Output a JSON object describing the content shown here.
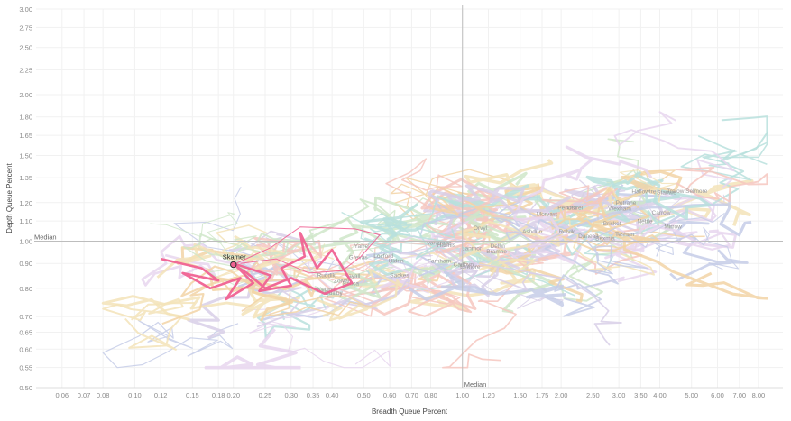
{
  "chart_data": {
    "type": "line",
    "xlabel": "Breadth Queue Percent",
    "ylabel": "Depth Queue Percent",
    "x_scale": "log",
    "y_scale": "log",
    "xlim": [
      0.05,
      9.5
    ],
    "ylim": [
      0.5,
      3.0
    ],
    "x_ticks": [
      0.06,
      0.07,
      0.08,
      0.1,
      0.12,
      0.15,
      0.18,
      0.2,
      0.25,
      0.3,
      0.35,
      0.4,
      0.5,
      0.6,
      0.7,
      0.8,
      1.0,
      1.2,
      1.5,
      1.75,
      2.0,
      2.5,
      3.0,
      3.5,
      4.0,
      5.0,
      6.0,
      7.0,
      8.0
    ],
    "x_tick_labels": [
      "0.06",
      "0.07",
      "0.08",
      "0.10",
      "0.12",
      "0.15",
      "0.18",
      "0.20",
      "0.25",
      "0.30",
      "0.35",
      "0.40",
      "0.50",
      "0.60",
      "0.70",
      "0.80",
      "1.00",
      "1.20",
      "1.50",
      "1.75",
      "2.00",
      "2.50",
      "3.00",
      "3.50",
      "4.00",
      "5.00",
      "6.00",
      "7.00",
      "8.00"
    ],
    "y_ticks": [
      0.5,
      0.55,
      0.6,
      0.65,
      0.7,
      0.8,
      0.9,
      1.0,
      1.1,
      1.2,
      1.35,
      1.5,
      1.65,
      1.8,
      2.0,
      2.25,
      2.5,
      2.75,
      3.0
    ],
    "y_tick_labels": [
      "0.50",
      "0.55",
      "0.60",
      "0.65",
      "0.70",
      "0.80",
      "0.90",
      "1.00",
      "1.10",
      "1.20",
      "1.35",
      "1.50",
      "1.65",
      "1.80",
      "2.00",
      "2.25",
      "2.50",
      "2.75",
      "3.00"
    ],
    "reference_lines": [
      {
        "axis": "x",
        "value": 1.0,
        "label": "Median"
      },
      {
        "axis": "y",
        "value": 1.0,
        "label": "Median"
      }
    ],
    "highlight": {
      "name": "Skamer",
      "color": "#f06292",
      "current_point": {
        "x": 0.2,
        "y": 0.895
      },
      "path": [
        {
          "x": 0.12,
          "y": 0.92
        },
        {
          "x": 0.16,
          "y": 0.88
        },
        {
          "x": 0.18,
          "y": 0.83
        },
        {
          "x": 0.14,
          "y": 0.86
        },
        {
          "x": 0.17,
          "y": 0.8
        },
        {
          "x": 0.21,
          "y": 0.84
        },
        {
          "x": 0.19,
          "y": 0.76
        },
        {
          "x": 0.23,
          "y": 0.82
        },
        {
          "x": 0.2,
          "y": 0.9
        },
        {
          "x": 0.26,
          "y": 0.85
        },
        {
          "x": 0.24,
          "y": 0.79
        },
        {
          "x": 0.3,
          "y": 0.81
        },
        {
          "x": 0.28,
          "y": 0.88
        },
        {
          "x": 0.33,
          "y": 0.93
        },
        {
          "x": 0.32,
          "y": 1.04
        },
        {
          "x": 0.36,
          "y": 0.88
        },
        {
          "x": 0.4,
          "y": 0.96
        },
        {
          "x": 0.46,
          "y": 0.82
        },
        {
          "x": 0.38,
          "y": 0.78
        },
        {
          "x": 0.3,
          "y": 0.84
        },
        {
          "x": 0.25,
          "y": 0.8
        },
        {
          "x": 0.22,
          "y": 0.86
        },
        {
          "x": 0.2,
          "y": 0.895
        }
      ]
    },
    "outline_path": [
      {
        "x": 0.2,
        "y": 0.895
      },
      {
        "x": 0.26,
        "y": 0.97
      },
      {
        "x": 0.32,
        "y": 1.07
      },
      {
        "x": 0.47,
        "y": 1.06
      },
      {
        "x": 0.56,
        "y": 1.03
      },
      {
        "x": 0.49,
        "y": 0.93
      },
      {
        "x": 0.43,
        "y": 0.87
      },
      {
        "x": 0.34,
        "y": 0.86
      },
      {
        "x": 0.27,
        "y": 0.92
      },
      {
        "x": 0.21,
        "y": 0.9
      }
    ],
    "background_series_count": 120,
    "background_palette": [
      "#b8e0dd",
      "#c6cce8",
      "#f3e3b8",
      "#f6c7bf",
      "#cfe6c9",
      "#e8d6ee",
      "#d8cfe8",
      "#f2d3a6"
    ],
    "cloud_labels": [
      "Sackes",
      "Hallowtre",
      "Bexmia",
      "Kayall",
      "Cadbyn",
      "Entica",
      "Vannrope",
      "Daneall",
      "Hannis",
      "Loxford",
      "Grevas",
      "Petrane",
      "Ruddik",
      "Selmore",
      "Teshan",
      "Uldrin",
      "Morvast",
      "Ostrel",
      "Quillby",
      "Farnham",
      "Brisket",
      "Carrow",
      "Dellin",
      "Esmore",
      "Ketwyn",
      "Lanmor",
      "Mirrow",
      "Nettle",
      "Orvyl",
      "Pendra",
      "Rolvik",
      "Stanwe",
      "Trelow",
      "Wexham",
      "Yarrel",
      "Zolvan",
      "Ashdun",
      "Bramhe"
    ]
  }
}
